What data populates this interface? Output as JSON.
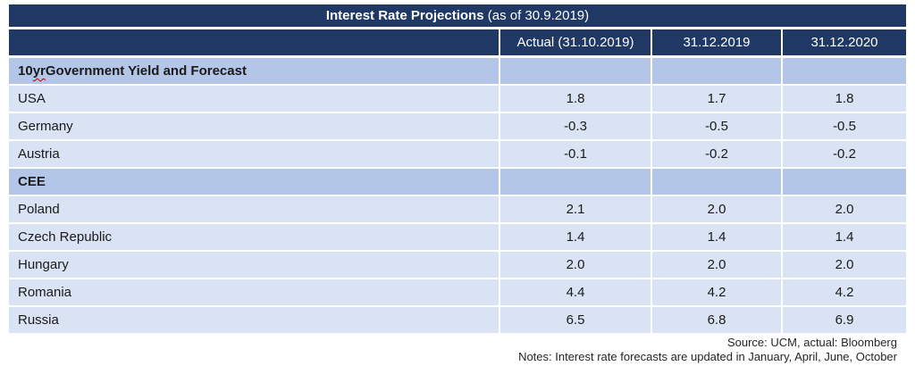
{
  "colors": {
    "header_navy": "#1F3864",
    "section_row": "#B4C6E7",
    "data_row": "#DAE3F3",
    "separator": "#FFFFFF",
    "footer_text": "#262626",
    "misspell_underline": "#C00000"
  },
  "table": {
    "title": "Interest Rate Projections",
    "title_suffix": " (as of 30.9.2019)",
    "columns": [
      "",
      "Actual (31.10.2019)",
      "31.12.2019",
      "31.12.2020"
    ],
    "rows": [
      {
        "type": "section",
        "label_parts": [
          "10 ",
          "yr",
          " Government Yield and Forecast"
        ],
        "values": [
          "",
          "",
          ""
        ]
      },
      {
        "type": "data",
        "label": "USA",
        "values": [
          "1.8",
          "1.7",
          "1.8"
        ]
      },
      {
        "type": "data",
        "label": "Germany",
        "values": [
          "-0.3",
          "-0.5",
          "-0.5"
        ]
      },
      {
        "type": "data",
        "label": "Austria",
        "values": [
          "-0.1",
          "-0.2",
          "-0.2"
        ]
      },
      {
        "type": "section",
        "label": "CEE",
        "values": [
          "",
          "",
          ""
        ]
      },
      {
        "type": "data",
        "label": "Poland",
        "values": [
          "2.1",
          "2.0",
          "2.0"
        ]
      },
      {
        "type": "data",
        "label": "Czech Republic",
        "values": [
          "1.4",
          "1.4",
          "1.4"
        ]
      },
      {
        "type": "data",
        "label": "Hungary",
        "values": [
          "2.0",
          "2.0",
          "2.0"
        ]
      },
      {
        "type": "data",
        "label": "Romania",
        "values": [
          "4.4",
          "4.2",
          "4.2"
        ]
      },
      {
        "type": "data",
        "label": "Russia",
        "values": [
          "6.5",
          "6.8",
          "6.9"
        ]
      }
    ]
  },
  "footer": {
    "source_line": "Source: UCM, actual: Bloomberg",
    "notes_line": "Notes: Interest rate forecasts are updated in January, April, June, October"
  },
  "chart_data": {
    "type": "table",
    "title": "Interest Rate Projections (as of 30.9.2019)",
    "columns": [
      "Actual (31.10.2019)",
      "31.12.2019",
      "31.12.2020"
    ],
    "sections": [
      {
        "name": "10 yr Government Yield and Forecast",
        "rows": [
          {
            "label": "USA",
            "values": [
              1.8,
              1.7,
              1.8
            ]
          },
          {
            "label": "Germany",
            "values": [
              -0.3,
              -0.5,
              -0.5
            ]
          },
          {
            "label": "Austria",
            "values": [
              -0.1,
              -0.2,
              -0.2
            ]
          }
        ]
      },
      {
        "name": "CEE",
        "rows": [
          {
            "label": "Poland",
            "values": [
              2.1,
              2.0,
              2.0
            ]
          },
          {
            "label": "Czech Republic",
            "values": [
              1.4,
              1.4,
              1.4
            ]
          },
          {
            "label": "Hungary",
            "values": [
              2.0,
              2.0,
              2.0
            ]
          },
          {
            "label": "Romania",
            "values": [
              4.4,
              4.2,
              4.2
            ]
          },
          {
            "label": "Russia",
            "values": [
              6.5,
              6.8,
              6.9
            ]
          }
        ]
      }
    ],
    "source": "UCM, actual: Bloomberg",
    "notes": "Interest rate forecasts are updated in January, April, June, October"
  }
}
